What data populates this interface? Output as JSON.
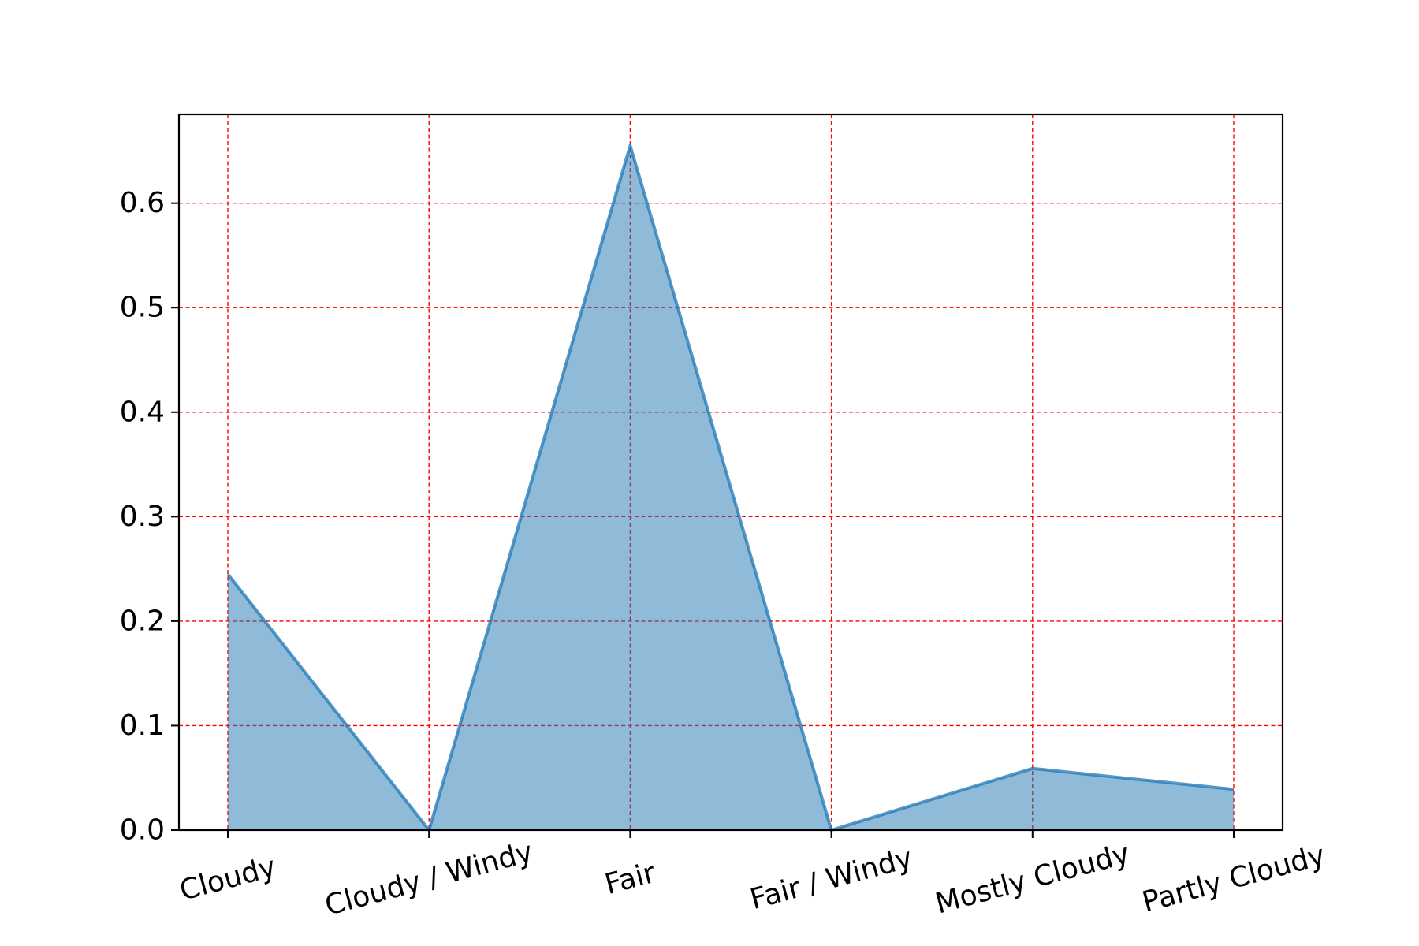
{
  "chart_data": {
    "type": "area",
    "title": "",
    "xlabel": "",
    "ylabel": "",
    "categories": [
      "Cloudy",
      "Cloudy / Windy",
      "Fair",
      "Fair / Windy",
      "Mostly Cloudy",
      "Partly Cloudy"
    ],
    "series": [
      {
        "values": [
          0.245,
          0.0,
          0.655,
          0.0,
          0.059,
          0.039
        ]
      }
    ],
    "ylim": [
      0,
      0.685
    ],
    "yticks": [
      "0.0",
      "0.1",
      "0.2",
      "0.3",
      "0.4",
      "0.5",
      "0.6"
    ],
    "grid": true,
    "legend": "none",
    "colors": {
      "fill": "#1f77b4",
      "line": "#1f77b4",
      "grid": "#ff0000",
      "axes": "#000000"
    }
  }
}
